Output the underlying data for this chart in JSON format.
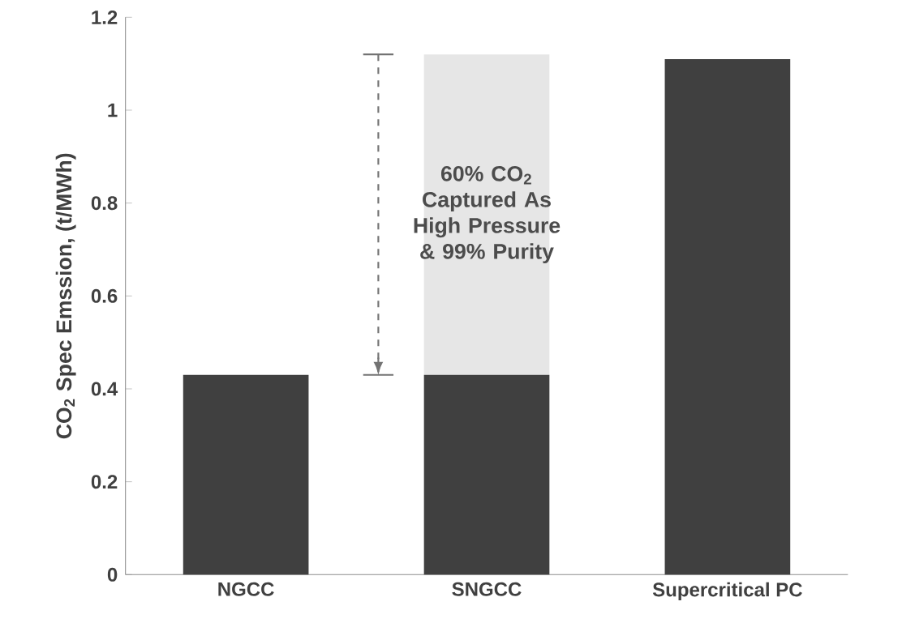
{
  "chart_data": {
    "type": "bar",
    "stacked": true,
    "ylabel": "CO$_{2}$ Spec Emssion, (t/MWh)",
    "categories": [
      "NGCC",
      "SNGCC",
      "Supercritical PC"
    ],
    "series": [
      {
        "color": "#404040",
        "values": [
          0.43,
          0.43,
          1.11
        ]
      },
      {
        "color": "#e6e6e6",
        "values": [
          null,
          0.69,
          null
        ]
      }
    ],
    "ylim": [
      0,
      1.2
    ],
    "yticks": [
      0,
      0.2,
      0.4,
      0.6,
      0.8,
      1,
      1.2
    ],
    "grid": false,
    "annotations": [
      "60% CO$_{2}$ Captured As High Pressure & 99% Purity"
    ]
  }
}
